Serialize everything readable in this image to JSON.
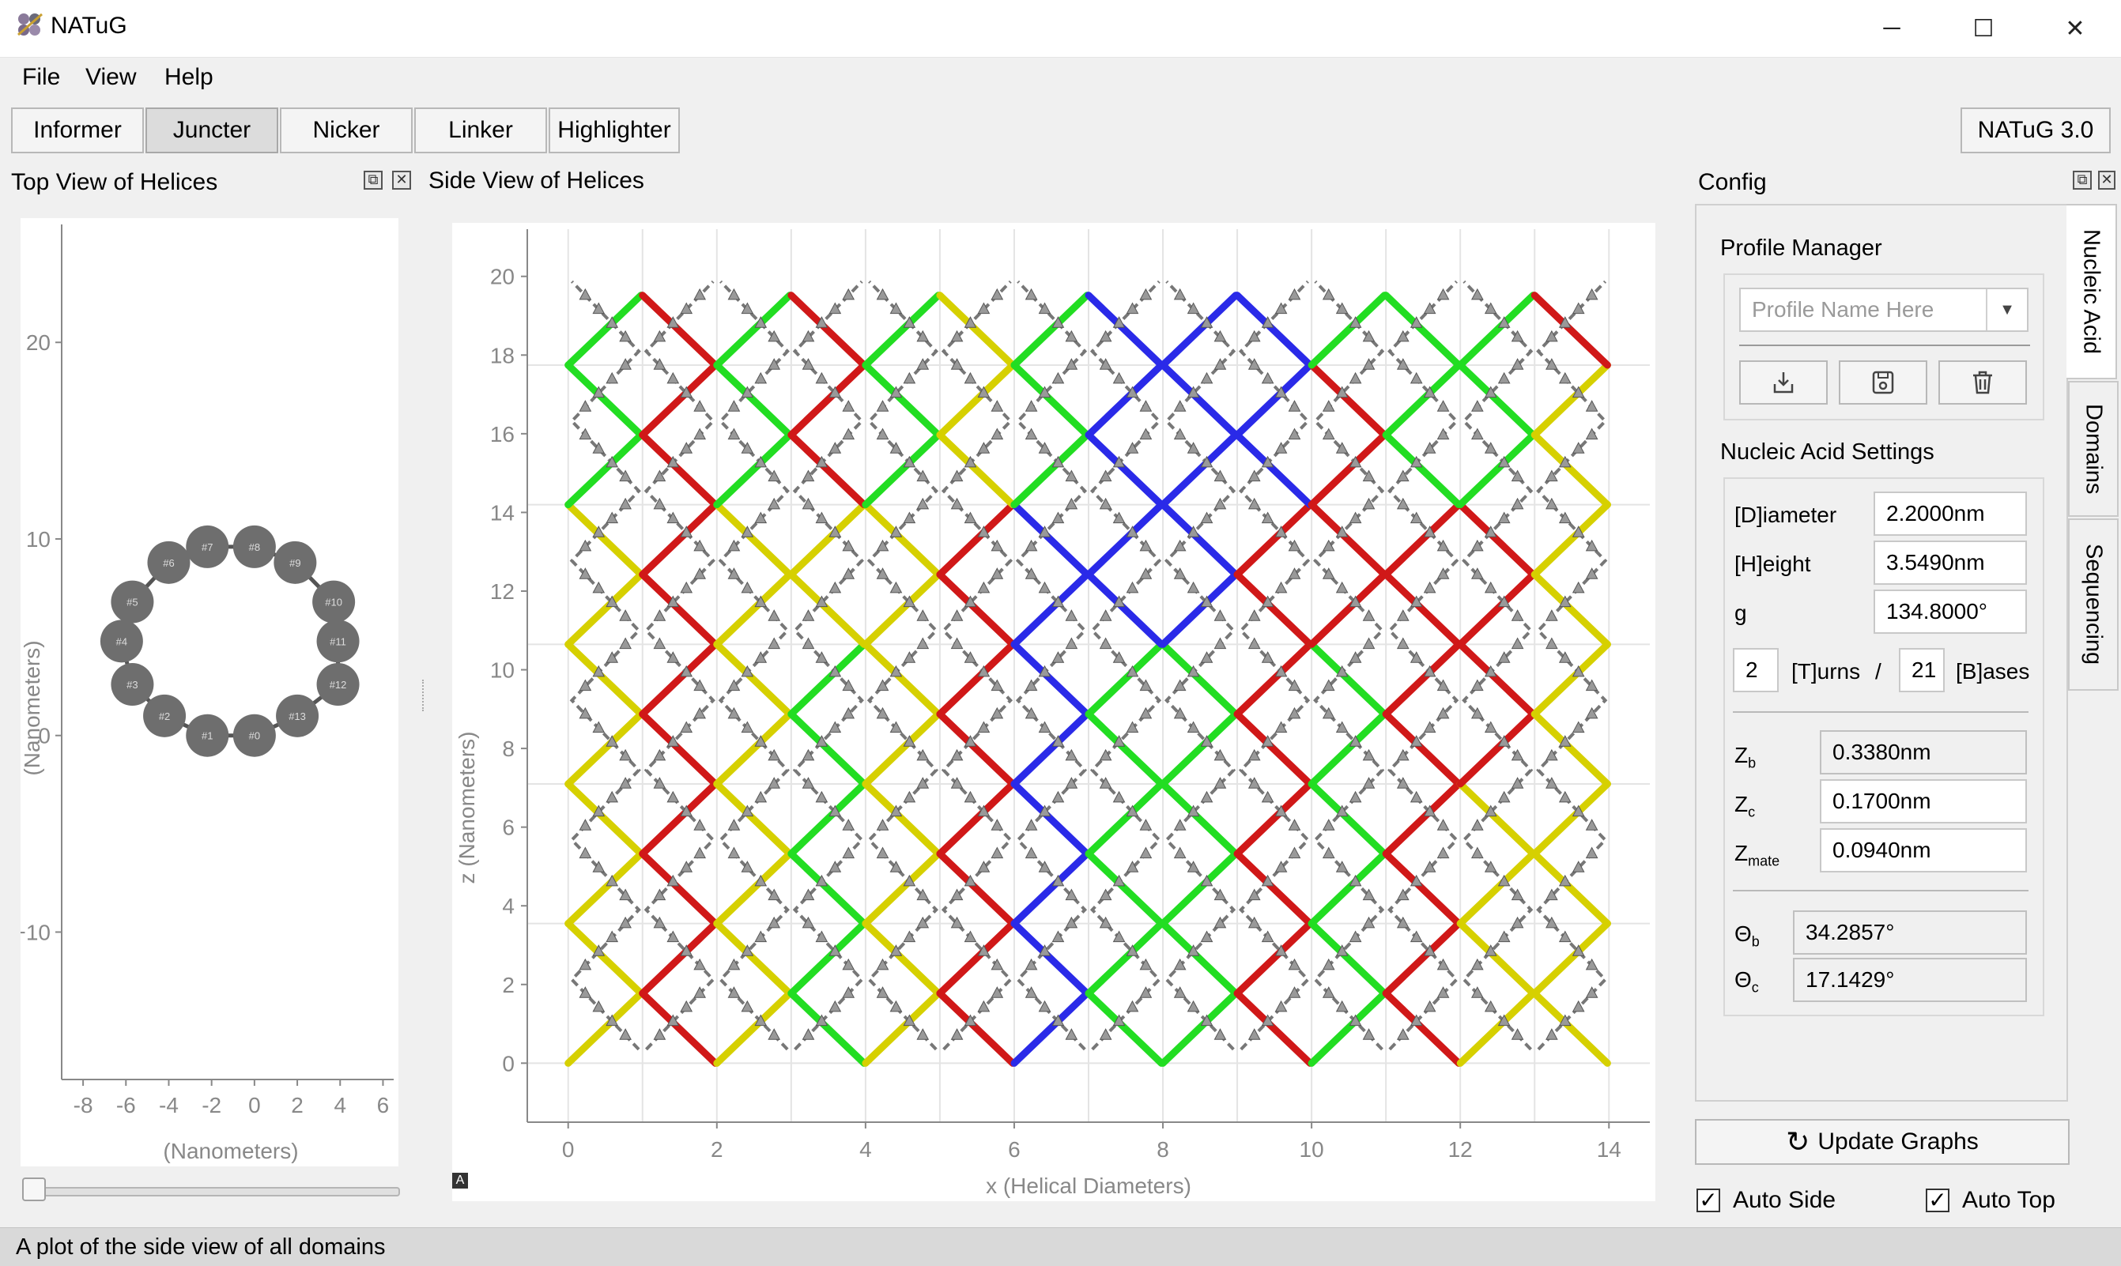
{
  "window": {
    "title": "NATuG",
    "minimize_glyph": "─",
    "maximize_glyph": "☐",
    "close_glyph": "✕"
  },
  "menu": {
    "file": "File",
    "view": "View",
    "help": "Help"
  },
  "toolbar": {
    "buttons": [
      "Informer",
      "Juncter",
      "Nicker",
      "Linker",
      "Highlighter"
    ],
    "active": "Juncter",
    "version": "NATuG 3.0"
  },
  "top_view": {
    "title": "Top View of Helices",
    "xlabel": "(Nanometers)",
    "ylabel": "(Nanometers)",
    "x_ticks": [
      "-8",
      "-6",
      "-4",
      "-2",
      "0",
      "2",
      "4",
      "6"
    ],
    "y_ticks": [
      "20",
      "10",
      "0",
      "−10"
    ],
    "domain_labels": [
      "#0",
      "#1",
      "#2",
      "#3",
      "#4",
      "#5",
      "#6",
      "#7",
      "#8",
      "#9",
      "#10",
      "#11",
      "#12",
      "#13"
    ],
    "slider_value": 0
  },
  "side_view": {
    "title": "Side View of Helices",
    "xlabel": "x (Helical Diameters)",
    "ylabel": "z (Nanometers)",
    "x_ticks": [
      "0",
      "2",
      "4",
      "6",
      "8",
      "10",
      "12",
      "14"
    ],
    "y_ticks": [
      "20",
      "18",
      "16",
      "14",
      "12",
      "10",
      "8",
      "6",
      "4",
      "2",
      "0"
    ],
    "corner_badge": "A"
  },
  "config": {
    "title": "Config",
    "tabs": [
      "Nucleic Acid",
      "Domains",
      "Sequencing"
    ],
    "active_tab": "Nucleic Acid",
    "profile_manager": {
      "title": "Profile Manager",
      "placeholder": "Profile Name Here",
      "buttons": [
        "load-icon",
        "save-icon",
        "trash-icon"
      ]
    },
    "nucleic_acid": {
      "title": "Nucleic Acid Settings",
      "diameter_label": "[D]iameter",
      "diameter": "2.2000nm",
      "height_label": "[H]eight",
      "height": "3.5490nm",
      "g_label": "g",
      "g": "134.8000°",
      "turns": "2",
      "turns_label": "[T]urns",
      "slash": "/",
      "bases": "21",
      "bases_label": "[B]ases",
      "zb_label": "Z",
      "zb_sub": "b",
      "zb": "0.3380nm",
      "zc_label": "Z",
      "zc_sub": "c",
      "zc": "0.1700nm",
      "zmate_label": "Z",
      "zmate_sub": "mate",
      "zmate": "0.0940nm",
      "thetab_label": "Θ",
      "thetab_sub": "b",
      "thetab": "34.2857°",
      "thetac_label": "Θ",
      "thetac_sub": "c",
      "thetac": "17.1429°"
    },
    "update_button": "Update Graphs",
    "refresh_glyph": "↻",
    "auto_side": "Auto Side",
    "auto_top": "Auto Top",
    "auto_side_checked": true,
    "auto_top_checked": true,
    "check_glyph": "✓"
  },
  "status": {
    "text": "A plot of the side view of all domains"
  },
  "chart_data": [
    {
      "type": "scatter",
      "title": "Top View of Helices",
      "xlabel": "(Nanometers)",
      "ylabel": "(Nanometers)",
      "xlim": [
        -9,
        6.5
      ],
      "ylim": [
        -17.5,
        26
      ],
      "series": [
        {
          "values": [
            [
              -2.2,
              9.6
            ],
            [
              0,
              9.6
            ],
            [
              1.9,
              8.8
            ],
            [
              3.7,
              6.8
            ],
            [
              3.9,
              4.8
            ],
            [
              3.9,
              2.6
            ],
            [
              2.0,
              1.0
            ],
            [
              0,
              0
            ],
            [
              -2.2,
              0
            ],
            [
              -4.2,
              1.0
            ],
            [
              -5.7,
              2.6
            ],
            [
              -6.2,
              4.8
            ],
            [
              -5.7,
              6.8
            ],
            [
              -4.0,
              8.8
            ]
          ]
        }
      ]
    },
    {
      "type": "line",
      "title": "Side View of Helices",
      "xlabel": "x (Helical Diameters)",
      "ylabel": "z (Nanometers)",
      "xlim": [
        -0.55,
        14.55
      ],
      "ylim": [
        -1.5,
        21.2
      ],
      "grid": true,
      "domains": 14,
      "strand_colors": {
        "0": [
          "#d6d000",
          "#d6d000",
          "#d6d000",
          "#d6d000",
          "#22dd22",
          "#22dd22",
          "#d6d000"
        ],
        "1": [
          "#d01818",
          "#d01818",
          "#d01818",
          "#d01818",
          "#d01818",
          "#d01818",
          "#d01818"
        ],
        "2": [
          "#d6d000",
          "#d6d000",
          "#d6d000",
          "#d6d000",
          "#22dd22",
          "#22dd22",
          "#d6d000"
        ],
        "3": [
          "#22dd22",
          "#22dd22",
          "#22dd22",
          "#d6d000",
          "#d01818",
          "#d01818",
          "#d01818"
        ],
        "4": [
          "#d6d000",
          "#d6d000",
          "#d6d000",
          "#d6d000",
          "#22dd22",
          "#22dd22",
          "#22dd22"
        ],
        "5": [
          "#d01818",
          "#d01818",
          "#d01818",
          "#d01818",
          "#d6d000",
          "#d6d000",
          "#d01818"
        ],
        "6": [
          "#2a2ae8",
          "#2a2ae8",
          "#2a2ae8",
          "#2a2ae8",
          "#22dd22",
          "#22dd22",
          "#22dd22"
        ],
        "7": [
          "#22dd22",
          "#22dd22",
          "#22dd22",
          "#2a2ae8",
          "#2a2ae8",
          "#2a2ae8",
          "#22dd22"
        ],
        "8": [
          "#22dd22",
          "#22dd22",
          "#22dd22",
          "#2a2ae8",
          "#2a2ae8",
          "#2a2ae8",
          "#d01818"
        ],
        "9": [
          "#d01818",
          "#d01818",
          "#d01818",
          "#d01818",
          "#2a2ae8",
          "#2a2ae8",
          "#2a2ae8"
        ],
        "10": [
          "#22dd22",
          "#22dd22",
          "#22dd22",
          "#d01818",
          "#d01818",
          "#22dd22",
          "#22dd22"
        ],
        "11": [
          "#d01818",
          "#d01818",
          "#d01818",
          "#d01818",
          "#22dd22",
          "#22dd22",
          "#22dd22"
        ],
        "12": [
          "#d6d000",
          "#d6d000",
          "#d01818",
          "#d01818",
          "#22dd22",
          "#22dd22",
          "#d01818"
        ],
        "13": [
          "#d6d000",
          "#d6d000",
          "#d6d000",
          "#d6d000",
          "#d6d000",
          "#d01818",
          "#d01818"
        ]
      }
    }
  ]
}
